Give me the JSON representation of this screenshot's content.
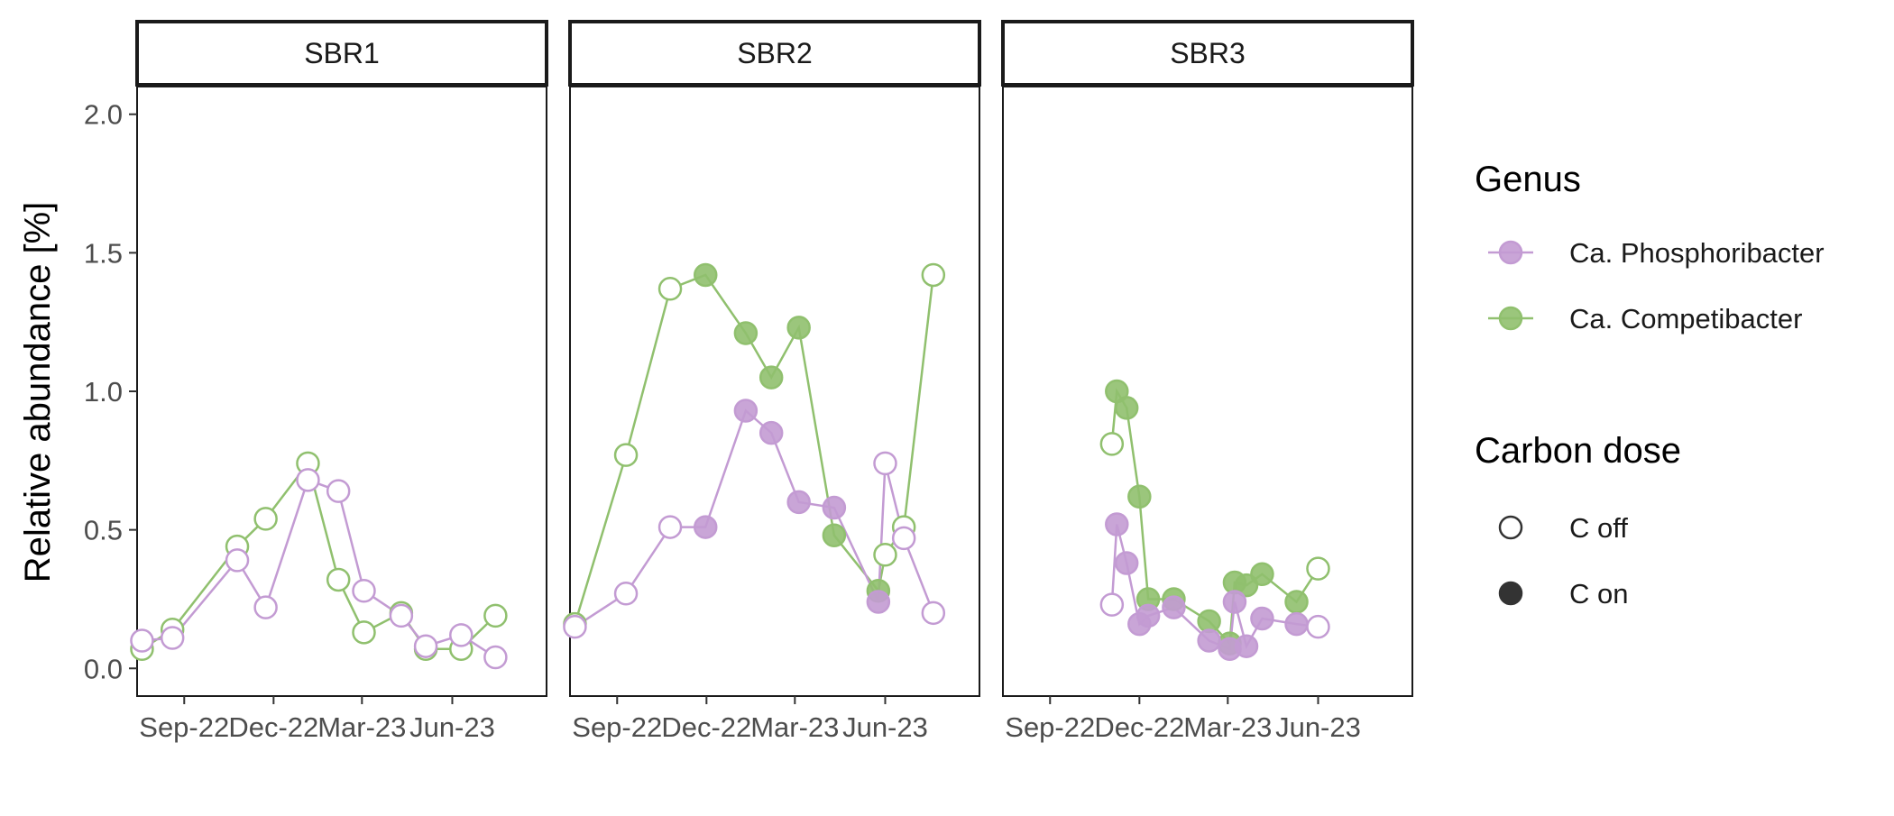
{
  "chart_data": {
    "type": "line",
    "ylabel": "Relative abundance [%]",
    "xlabel": "",
    "ylim": [
      -0.1,
      2.1
    ],
    "yticks": [
      0.0,
      0.5,
      1.0,
      1.5,
      2.0
    ],
    "ytick_labels": [
      "0.0",
      "0.5",
      "1.0",
      "1.5",
      "2.0"
    ],
    "xlim": [
      "2022-07-15",
      "2023-09-05"
    ],
    "xticks": [
      "2022-09-01",
      "2022-12-01",
      "2023-03-01",
      "2023-06-01"
    ],
    "xtick_labels": [
      "Sep-22",
      "Dec-22",
      "Mar-23",
      "Jun-23"
    ],
    "grid": false,
    "legend_placement": "right",
    "colors": {
      "Ca. Phosphoribacter": "#C39BD3",
      "Ca. Competibacter": "#90C06E"
    },
    "legend": {
      "genus_title": "Genus",
      "genus_items": [
        "Ca. Phosphoribacter",
        "Ca. Competibacter"
      ],
      "dose_title": "Carbon dose",
      "dose_items": [
        "C off",
        "C on"
      ]
    },
    "panels": [
      {
        "title": "SBR1",
        "series": [
          {
            "name": "Ca. Phosphoribacter",
            "points": [
              {
                "x": "2022-07-20",
                "y": 0.1,
                "dose": "C off"
              },
              {
                "x": "2022-08-20",
                "y": 0.11,
                "dose": "C off"
              },
              {
                "x": "2022-10-25",
                "y": 0.39,
                "dose": "C off"
              },
              {
                "x": "2022-11-23",
                "y": 0.22,
                "dose": "C off"
              },
              {
                "x": "2023-01-05",
                "y": 0.68,
                "dose": "C off"
              },
              {
                "x": "2023-02-05",
                "y": 0.64,
                "dose": "C off"
              },
              {
                "x": "2023-03-03",
                "y": 0.28,
                "dose": "C off"
              },
              {
                "x": "2023-04-10",
                "y": 0.19,
                "dose": "C off"
              },
              {
                "x": "2023-05-05",
                "y": 0.08,
                "dose": "C off"
              },
              {
                "x": "2023-06-10",
                "y": 0.12,
                "dose": "C off"
              },
              {
                "x": "2023-07-15",
                "y": 0.04,
                "dose": "C off"
              }
            ]
          },
          {
            "name": "Ca. Competibacter",
            "points": [
              {
                "x": "2022-07-20",
                "y": 0.07,
                "dose": "C off"
              },
              {
                "x": "2022-08-20",
                "y": 0.14,
                "dose": "C off"
              },
              {
                "x": "2022-10-25",
                "y": 0.44,
                "dose": "C off"
              },
              {
                "x": "2022-11-23",
                "y": 0.54,
                "dose": "C off"
              },
              {
                "x": "2023-01-05",
                "y": 0.74,
                "dose": "C off"
              },
              {
                "x": "2023-02-05",
                "y": 0.32,
                "dose": "C off"
              },
              {
                "x": "2023-03-03",
                "y": 0.13,
                "dose": "C off"
              },
              {
                "x": "2023-04-10",
                "y": 0.2,
                "dose": "C off"
              },
              {
                "x": "2023-05-05",
                "y": 0.07,
                "dose": "C off"
              },
              {
                "x": "2023-06-10",
                "y": 0.07,
                "dose": "C off"
              },
              {
                "x": "2023-07-15",
                "y": 0.19,
                "dose": "C off"
              }
            ]
          }
        ]
      },
      {
        "title": "SBR2",
        "series": [
          {
            "name": "Ca. Phosphoribacter",
            "points": [
              {
                "x": "2022-07-20",
                "y": 0.15,
                "dose": "C off"
              },
              {
                "x": "2022-09-10",
                "y": 0.27,
                "dose": "C off"
              },
              {
                "x": "2022-10-25",
                "y": 0.51,
                "dose": "C off"
              },
              {
                "x": "2022-11-30",
                "y": 0.51,
                "dose": "C on"
              },
              {
                "x": "2023-01-10",
                "y": 0.93,
                "dose": "C on"
              },
              {
                "x": "2023-02-05",
                "y": 0.85,
                "dose": "C on"
              },
              {
                "x": "2023-03-05",
                "y": 0.6,
                "dose": "C on"
              },
              {
                "x": "2023-04-10",
                "y": 0.58,
                "dose": "C on"
              },
              {
                "x": "2023-05-25",
                "y": 0.24,
                "dose": "C on"
              },
              {
                "x": "2023-06-01",
                "y": 0.74,
                "dose": "C off"
              },
              {
                "x": "2023-06-20",
                "y": 0.47,
                "dose": "C off"
              },
              {
                "x": "2023-07-20",
                "y": 0.2,
                "dose": "C off"
              }
            ]
          },
          {
            "name": "Ca. Competibacter",
            "points": [
              {
                "x": "2022-07-20",
                "y": 0.16,
                "dose": "C off"
              },
              {
                "x": "2022-09-10",
                "y": 0.77,
                "dose": "C off"
              },
              {
                "x": "2022-10-25",
                "y": 1.37,
                "dose": "C off"
              },
              {
                "x": "2022-11-30",
                "y": 1.42,
                "dose": "C on"
              },
              {
                "x": "2023-01-10",
                "y": 1.21,
                "dose": "C on"
              },
              {
                "x": "2023-02-05",
                "y": 1.05,
                "dose": "C on"
              },
              {
                "x": "2023-03-05",
                "y": 1.23,
                "dose": "C on"
              },
              {
                "x": "2023-04-10",
                "y": 0.48,
                "dose": "C on"
              },
              {
                "x": "2023-05-25",
                "y": 0.28,
                "dose": "C on"
              },
              {
                "x": "2023-06-01",
                "y": 0.41,
                "dose": "C off"
              },
              {
                "x": "2023-06-20",
                "y": 0.51,
                "dose": "C off"
              },
              {
                "x": "2023-07-20",
                "y": 1.42,
                "dose": "C off"
              }
            ]
          }
        ]
      },
      {
        "title": "SBR3",
        "series": [
          {
            "name": "Ca. Phosphoribacter",
            "points": [
              {
                "x": "2022-11-03",
                "y": 0.23,
                "dose": "C off"
              },
              {
                "x": "2022-11-08",
                "y": 0.52,
                "dose": "C on"
              },
              {
                "x": "2022-11-18",
                "y": 0.38,
                "dose": "C on"
              },
              {
                "x": "2022-12-01",
                "y": 0.16,
                "dose": "C on"
              },
              {
                "x": "2022-12-10",
                "y": 0.19,
                "dose": "C on"
              },
              {
                "x": "2023-01-05",
                "y": 0.22,
                "dose": "C on"
              },
              {
                "x": "2023-02-10",
                "y": 0.1,
                "dose": "C on"
              },
              {
                "x": "2023-03-03",
                "y": 0.07,
                "dose": "C on"
              },
              {
                "x": "2023-03-08",
                "y": 0.24,
                "dose": "C on"
              },
              {
                "x": "2023-03-20",
                "y": 0.08,
                "dose": "C on"
              },
              {
                "x": "2023-04-05",
                "y": 0.18,
                "dose": "C on"
              },
              {
                "x": "2023-05-10",
                "y": 0.16,
                "dose": "C on"
              },
              {
                "x": "2023-06-01",
                "y": 0.15,
                "dose": "C off"
              }
            ]
          },
          {
            "name": "Ca. Competibacter",
            "points": [
              {
                "x": "2022-11-03",
                "y": 0.81,
                "dose": "C off"
              },
              {
                "x": "2022-11-08",
                "y": 1.0,
                "dose": "C on"
              },
              {
                "x": "2022-11-18",
                "y": 0.94,
                "dose": "C on"
              },
              {
                "x": "2022-12-01",
                "y": 0.62,
                "dose": "C on"
              },
              {
                "x": "2022-12-10",
                "y": 0.25,
                "dose": "C on"
              },
              {
                "x": "2023-01-05",
                "y": 0.25,
                "dose": "C on"
              },
              {
                "x": "2023-02-10",
                "y": 0.17,
                "dose": "C on"
              },
              {
                "x": "2023-03-03",
                "y": 0.09,
                "dose": "C on"
              },
              {
                "x": "2023-03-08",
                "y": 0.31,
                "dose": "C on"
              },
              {
                "x": "2023-03-20",
                "y": 0.3,
                "dose": "C on"
              },
              {
                "x": "2023-04-05",
                "y": 0.34,
                "dose": "C on"
              },
              {
                "x": "2023-05-10",
                "y": 0.24,
                "dose": "C on"
              },
              {
                "x": "2023-06-01",
                "y": 0.36,
                "dose": "C off"
              }
            ]
          }
        ]
      }
    ]
  }
}
